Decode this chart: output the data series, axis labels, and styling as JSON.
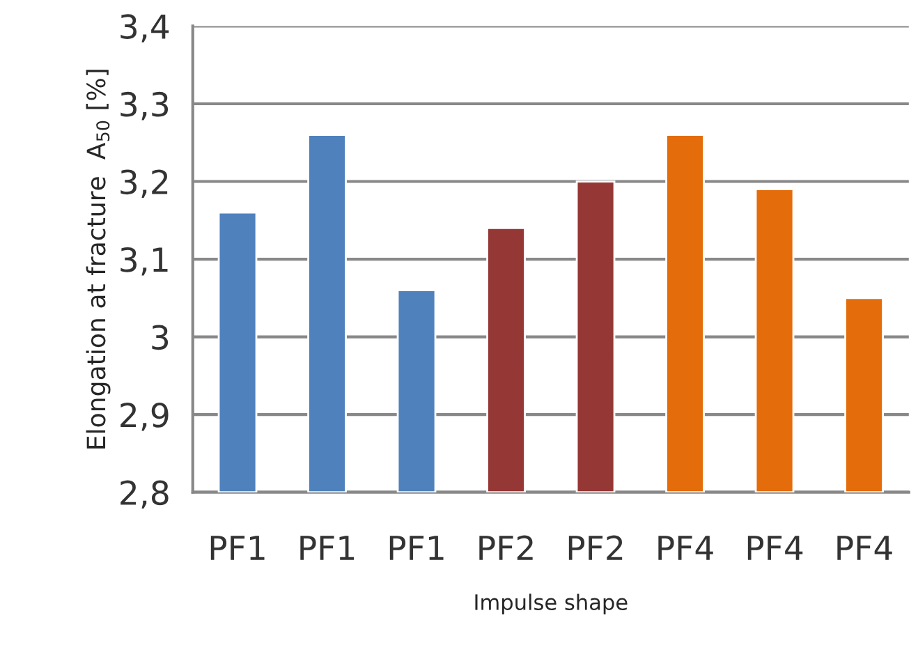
{
  "chart_data": {
    "type": "bar",
    "xlabel": "Impulse shape",
    "ylabel": "Elongation at fracture  A$_{50}$ [%]",
    "categories": [
      "PF1",
      "PF1",
      "PF1",
      "PF2",
      "PF2",
      "PF4",
      "PF4",
      "PF4"
    ],
    "values": [
      3.16,
      3.26,
      3.06,
      3.14,
      3.2,
      3.26,
      3.19,
      3.05
    ],
    "colors": [
      "#4f81bd",
      "#4f81bd",
      "#4f81bd",
      "#953735",
      "#953735",
      "#e46c0a",
      "#e46c0a",
      "#e46c0a"
    ],
    "ylim": [
      2.8,
      3.4
    ],
    "yticks": [
      {
        "value": 2.8,
        "label": "2,8"
      },
      {
        "value": 2.9,
        "label": "2,9"
      },
      3,
      {
        "value": 3.1,
        "label": "3,1"
      },
      {
        "value": 3.2,
        "label": "3,2"
      },
      {
        "value": 3.3,
        "label": "3,3"
      },
      {
        "value": 3.4,
        "label": "3,4"
      }
    ],
    "grid": "y",
    "legend": false
  }
}
